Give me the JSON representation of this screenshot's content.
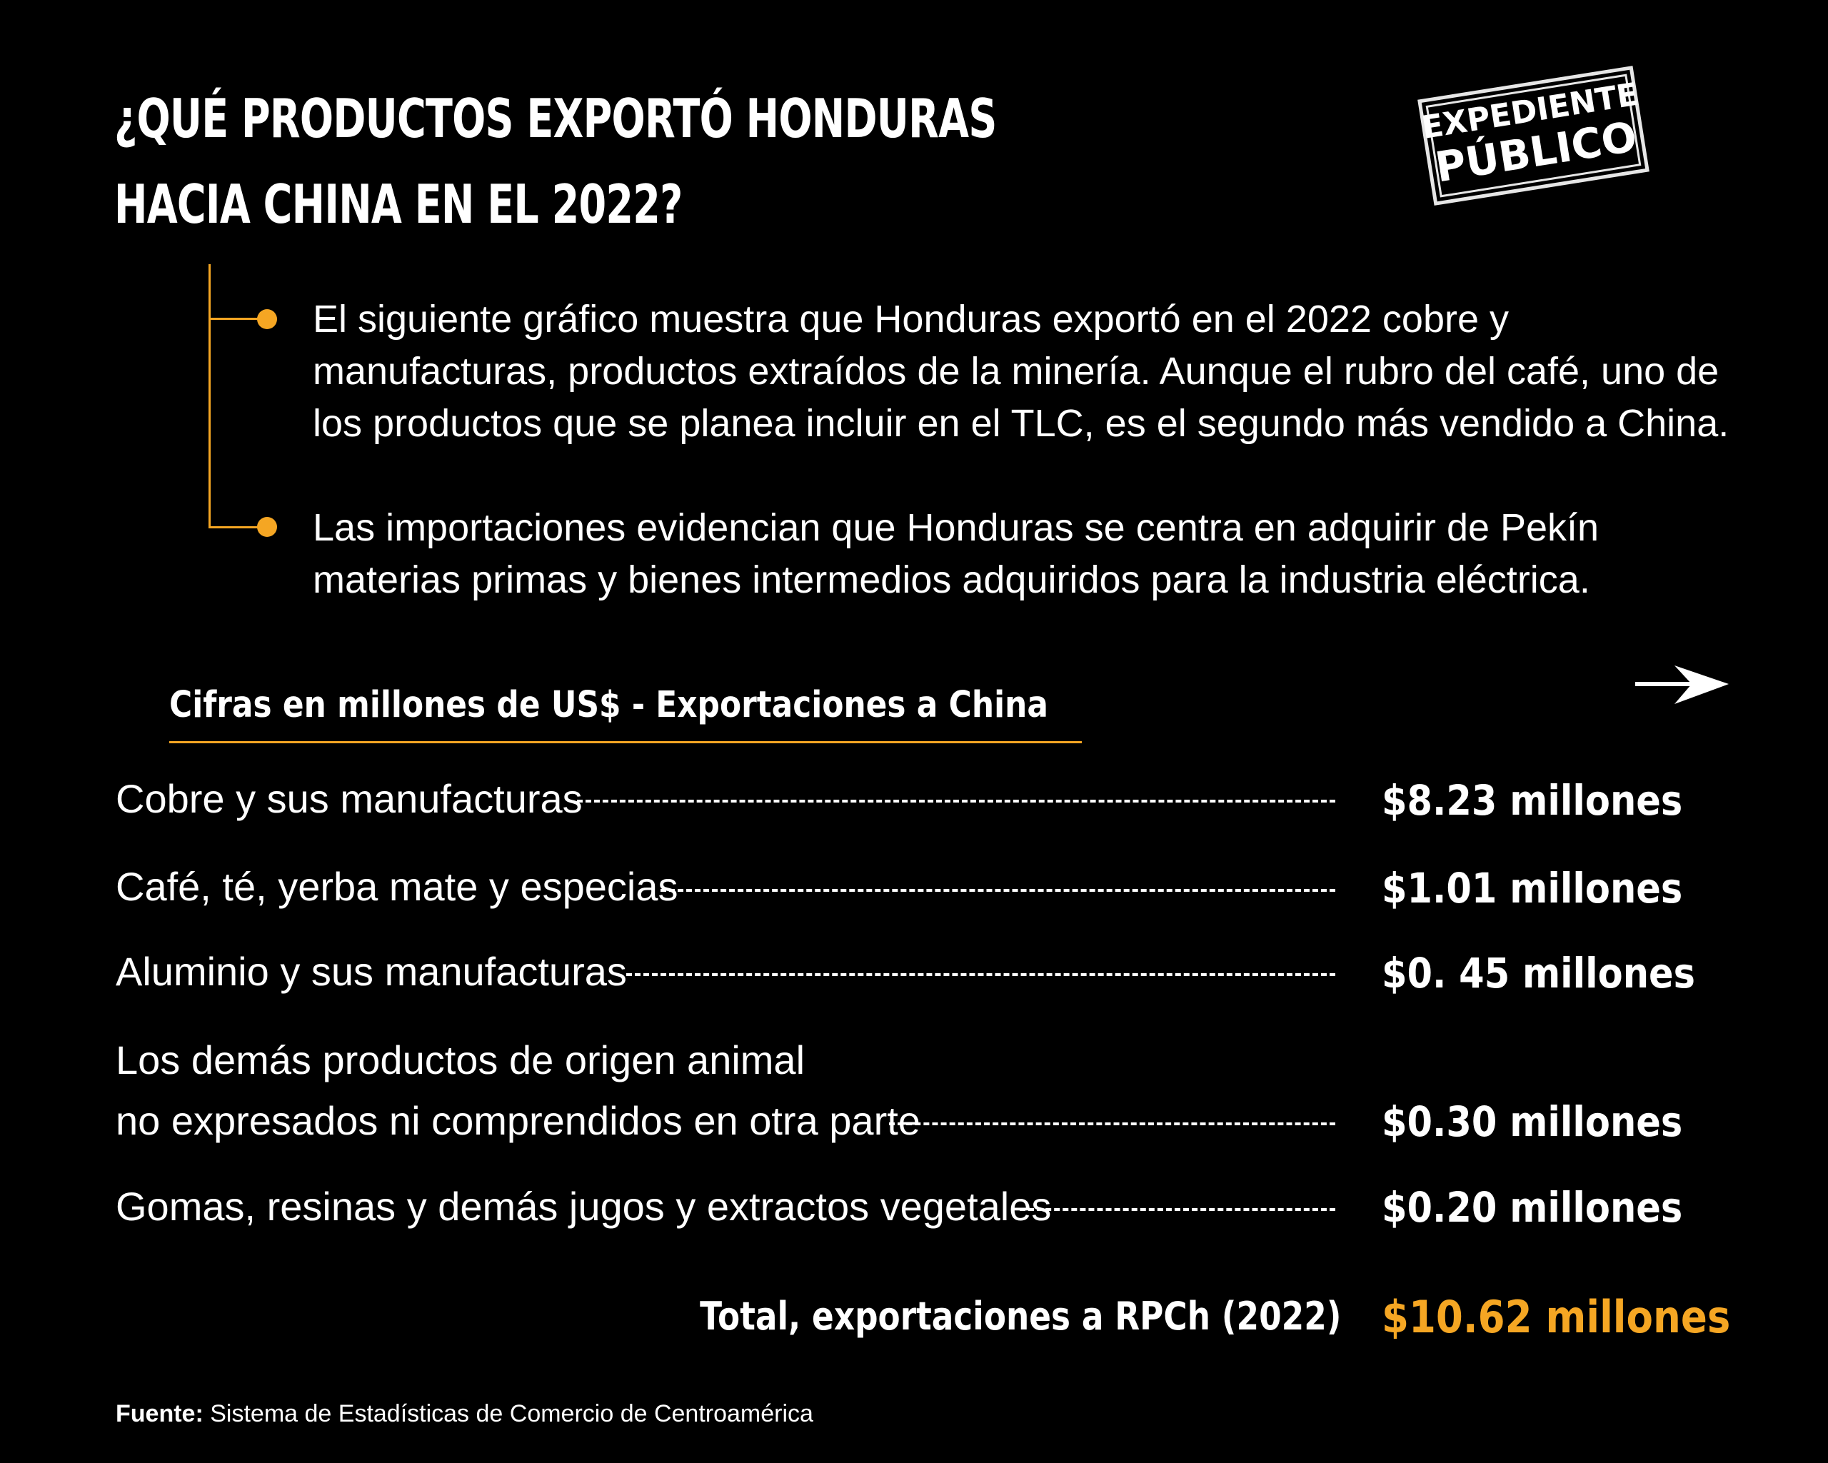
{
  "header": {
    "title_line1": "¿QUÉ PRODUCTOS EXPORTÓ HONDURAS",
    "title_line2": "HACIA CHINA EN EL 2022?"
  },
  "logo": {
    "line1": "EXPEDIENTE",
    "line2": "PÚBLICO"
  },
  "intro": {
    "bullets": [
      "El siguiente gráfico muestra que Honduras exportó en el 2022 cobre y manufacturas, productos extraídos de la minería. Aunque el rubro del café, uno de los productos que se planea incluir en el TLC, es el segundo más vendido a China.",
      "Las importaciones evidencian que Honduras se centra en adquirir de Pekín materias primas y bienes intermedios adquiridos para la industria eléctrica."
    ]
  },
  "table": {
    "heading": "Cifras en millones de US$ - Exportaciones a China",
    "rows": [
      {
        "label": "Cobre y sus manufacturas",
        "value": "$8.23 millones"
      },
      {
        "label": "Café, té, yerba mate y especias",
        "value": "$1.01 millones"
      },
      {
        "label": "Aluminio y sus manufacturas",
        "value": "$0. 45 millones"
      },
      {
        "label_line1": "Los demás productos de origen animal",
        "label_line2": "no expresados ni comprendidos en otra parte",
        "value": "$0.30 millones"
      },
      {
        "label": "Gomas, resinas y demás jugos y extractos vegetales",
        "value": "$0.20 millones"
      }
    ],
    "total_label": "Total, exportaciones a RPCh (2022)",
    "total_value": "$10.62 millones"
  },
  "footer": {
    "source_label": "Fuente:",
    "source_text": "Sistema de Estadísticas de Comercio de Centroamérica"
  },
  "colors": {
    "background": "#000000",
    "accent": "#f5a623",
    "text": "#ffffff"
  }
}
